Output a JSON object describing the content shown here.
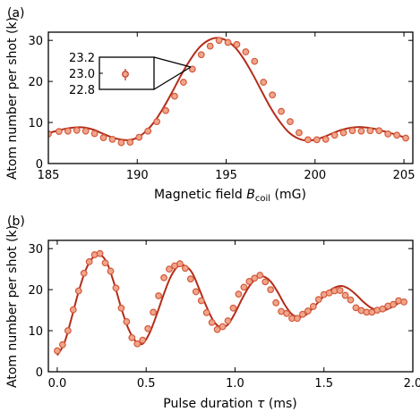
{
  "chart_data": [
    {
      "panel_label": "(a)",
      "type": "scatter",
      "xlabel_main": "Magnetic field ",
      "xlabel_var": "B",
      "xlabel_sub": "coil",
      "xlabel_unit": " (mG)",
      "ylabel": "Atom number per shot (k)",
      "xlim": [
        185,
        205.5
      ],
      "ylim": [
        0,
        32
      ],
      "xticks": [
        185,
        190,
        195,
        200,
        205
      ],
      "yticks": [
        0,
        10,
        20,
        30
      ],
      "marker_color": "#d35a3a",
      "line_color": "#b32d1a",
      "series": [
        {
          "kind": "data",
          "x": [
            185.0,
            185.6,
            186.1,
            186.6,
            187.1,
            187.6,
            188.1,
            188.6,
            189.1,
            189.6,
            190.1,
            190.6,
            191.1,
            191.6,
            192.1,
            192.6,
            193.1,
            193.6,
            194.1,
            194.6,
            195.1,
            195.6,
            196.1,
            196.6,
            197.1,
            197.6,
            198.1,
            198.6,
            199.1,
            199.6,
            200.1,
            200.6,
            201.1,
            201.6,
            202.1,
            202.6,
            203.1,
            203.6,
            204.1,
            204.6,
            205.1
          ],
          "y": [
            7.2,
            7.8,
            7.9,
            8.1,
            7.9,
            7.3,
            6.3,
            5.9,
            5.1,
            5.2,
            6.4,
            7.9,
            10.2,
            12.9,
            16.4,
            19.8,
            23.0,
            26.5,
            28.6,
            30.0,
            29.5,
            29.0,
            27.2,
            24.9,
            19.8,
            16.7,
            12.7,
            10.2,
            7.5,
            5.8,
            5.8,
            5.9,
            6.9,
            7.5,
            8.0,
            7.9,
            8.0,
            8.0,
            7.2,
            6.9,
            6.2
          ]
        },
        {
          "kind": "fit",
          "x": [
            185.0,
            185.5,
            186.0,
            186.5,
            187.0,
            187.5,
            188.0,
            188.5,
            189.0,
            189.5,
            190.0,
            190.5,
            191.0,
            191.5,
            192.0,
            192.5,
            193.0,
            193.5,
            194.0,
            194.5,
            195.0,
            195.5,
            196.0,
            196.5,
            197.0,
            197.5,
            198.0,
            198.5,
            199.0,
            199.5,
            200.0,
            200.5,
            201.0,
            201.5,
            202.0,
            202.5,
            203.0,
            203.5,
            204.0,
            204.5,
            205.0
          ],
          "y": [
            7.4,
            8.0,
            8.5,
            8.8,
            8.8,
            8.3,
            7.4,
            6.5,
            5.9,
            5.7,
            6.3,
            7.9,
            10.4,
            13.8,
            17.7,
            21.8,
            25.4,
            28.3,
            30.0,
            30.6,
            30.0,
            28.3,
            25.4,
            21.7,
            17.6,
            13.6,
            10.3,
            7.7,
            6.2,
            5.6,
            5.8,
            6.5,
            7.4,
            8.2,
            8.7,
            8.9,
            8.7,
            8.3,
            7.7,
            7.1,
            6.4
          ]
        }
      ],
      "inset": {
        "yticks": [
          "23.2",
          "23.0",
          "22.8"
        ],
        "point_value": 23.0
      }
    },
    {
      "panel_label": "(b)",
      "type": "scatter",
      "xlabel_main": "Pulse duration ",
      "xlabel_var": "τ",
      "xlabel_sub": "",
      "xlabel_unit": " (ms)",
      "ylabel": "Atom number per shot (k)",
      "xlim": [
        -0.05,
        2.0
      ],
      "ylim": [
        0,
        32
      ],
      "xticks": [
        0.0,
        0.5,
        1.0,
        1.5,
        2.0
      ],
      "xtick_labels": [
        "0.0",
        "0.5",
        "1.0",
        "1.5",
        "2.0"
      ],
      "yticks": [
        0,
        10,
        20,
        30
      ],
      "marker_color": "#d35a3a",
      "line_color": "#b32d1a",
      "series": [
        {
          "kind": "data",
          "x": [
            0.0,
            0.03,
            0.06,
            0.09,
            0.12,
            0.15,
            0.18,
            0.21,
            0.24,
            0.27,
            0.3,
            0.33,
            0.36,
            0.39,
            0.42,
            0.45,
            0.48,
            0.51,
            0.54,
            0.57,
            0.6,
            0.63,
            0.66,
            0.69,
            0.72,
            0.75,
            0.78,
            0.81,
            0.84,
            0.87,
            0.9,
            0.93,
            0.96,
            0.99,
            1.02,
            1.05,
            1.08,
            1.11,
            1.14,
            1.17,
            1.2,
            1.23,
            1.26,
            1.29,
            1.32,
            1.35,
            1.38,
            1.41,
            1.44,
            1.47,
            1.5,
            1.53,
            1.56,
            1.59,
            1.62,
            1.65,
            1.68,
            1.71,
            1.74,
            1.77,
            1.8,
            1.83,
            1.86,
            1.89,
            1.92,
            1.95
          ],
          "y": [
            5.1,
            6.6,
            10.0,
            15.1,
            19.7,
            24.0,
            26.8,
            28.5,
            28.8,
            26.5,
            24.5,
            20.4,
            15.5,
            12.2,
            8.3,
            6.8,
            7.7,
            10.5,
            14.5,
            18.5,
            22.9,
            25.0,
            25.8,
            26.3,
            25.2,
            22.6,
            19.5,
            17.3,
            14.4,
            12.0,
            10.3,
            11.0,
            12.4,
            15.5,
            18.9,
            20.6,
            22.0,
            22.8,
            23.5,
            21.9,
            20.0,
            16.8,
            14.7,
            14.2,
            13.0,
            13.0,
            14.0,
            14.8,
            15.9,
            17.6,
            18.8,
            19.2,
            19.7,
            19.8,
            18.6,
            17.5,
            15.6,
            14.9,
            14.5,
            14.5,
            15.0,
            15.3,
            16.0,
            16.4,
            17.3,
            17.0
          ]
        },
        {
          "kind": "fit",
          "x": [
            0.0,
            0.04,
            0.08,
            0.12,
            0.16,
            0.2,
            0.24,
            0.28,
            0.32,
            0.36,
            0.4,
            0.44,
            0.48,
            0.52,
            0.56,
            0.6,
            0.64,
            0.68,
            0.72,
            0.76,
            0.8,
            0.84,
            0.88,
            0.92,
            0.96,
            1.0,
            1.04,
            1.08,
            1.12,
            1.16,
            1.2,
            1.24,
            1.28,
            1.32,
            1.36,
            1.4,
            1.44,
            1.48,
            1.52,
            1.56,
            1.6,
            1.64,
            1.68,
            1.72,
            1.76,
            1.8,
            1.84,
            1.88,
            1.92,
            1.95
          ],
          "y": [
            4.0,
            7.0,
            13.0,
            19.5,
            24.8,
            27.8,
            28.5,
            26.5,
            21.5,
            15.5,
            10.5,
            7.5,
            6.8,
            9.5,
            14.0,
            19.0,
            23.3,
            25.7,
            25.8,
            24.0,
            20.0,
            15.8,
            12.3,
            10.8,
            11.5,
            14.3,
            17.8,
            20.8,
            22.8,
            23.2,
            22.0,
            19.4,
            16.3,
            14.0,
            13.3,
            13.9,
            15.6,
            17.5,
            19.3,
            20.5,
            20.9,
            20.2,
            18.8,
            17.1,
            15.7,
            15.0,
            15.0,
            15.7,
            16.7,
            17.3
          ]
        }
      ]
    }
  ]
}
